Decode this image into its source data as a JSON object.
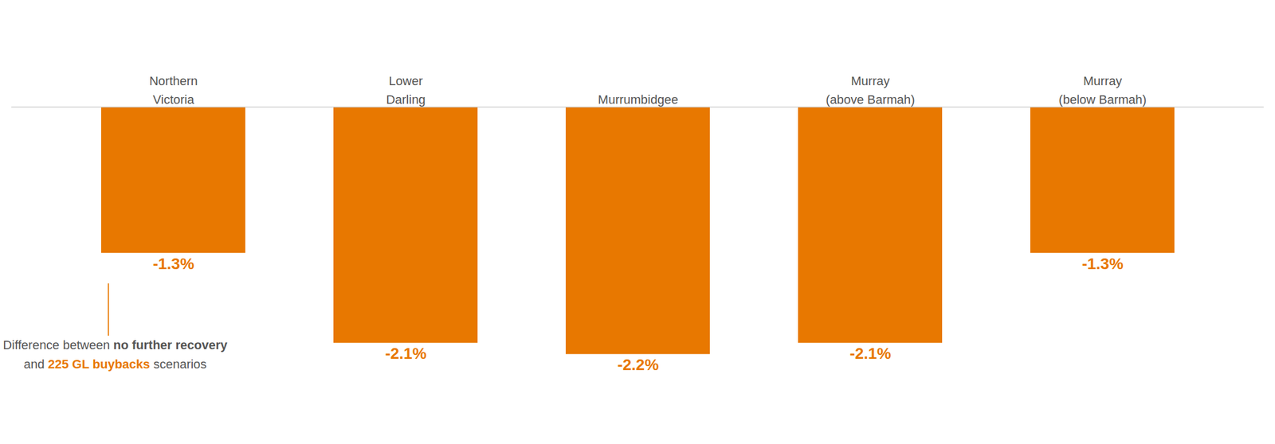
{
  "chart_data": {
    "type": "bar",
    "categories": [
      "Northern\nVictoria",
      "Lower\nDarling",
      "Murrumbidgee",
      "Murray\n(above Barmah)",
      "Murray\n(below Barmah)"
    ],
    "values": [
      -1.3,
      -2.1,
      -2.2,
      -2.1,
      -1.3
    ],
    "value_labels": [
      "-1.3%",
      "-2.1%",
      "-2.2%",
      "-2.1%",
      "-1.3%"
    ],
    "color": "#E87800",
    "ylim": [
      -2.9,
      0.85
    ],
    "grid": false,
    "tick_labels": false,
    "data_labels": true,
    "annotation": [
      [
        "Difference between ",
        "no further recovery"
      ],
      [
        "and ",
        "225 GL buybacks",
        " scenarios"
      ]
    ]
  }
}
